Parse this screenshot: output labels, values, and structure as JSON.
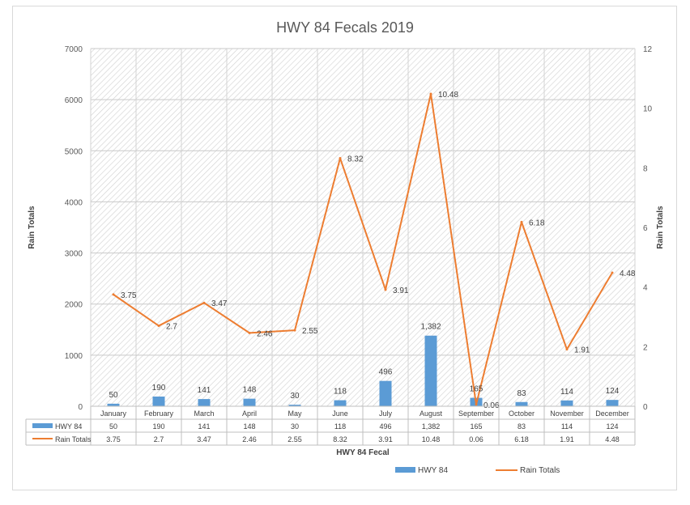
{
  "chart_data": {
    "type": "bar",
    "title": "HWY 84 Fecals 2019",
    "xlabel": "HWY 84 Fecal",
    "ylabel": "Rain Totals",
    "y2label": "Rain Totals",
    "ylim": [
      0,
      7000
    ],
    "yticks": [
      0,
      1000,
      2000,
      3000,
      4000,
      5000,
      6000,
      7000
    ],
    "y2lim": [
      0,
      12
    ],
    "y2ticks": [
      0,
      2,
      4,
      6,
      8,
      10,
      12
    ],
    "grid": true,
    "legend": "bottom",
    "categories": [
      "January",
      "February",
      "March",
      "April",
      "May",
      "June",
      "July",
      "August",
      "September",
      "October",
      "November",
      "December"
    ],
    "series": [
      {
        "name": "HWY 84",
        "type": "bar",
        "axis": "left",
        "color": "#5B9BD5",
        "values": [
          50,
          190,
          141,
          148,
          30,
          118,
          496,
          1382,
          165,
          83,
          114,
          124
        ],
        "labels": [
          "50",
          "190",
          "141",
          "148",
          "30",
          "118",
          "496",
          "1,382",
          "165",
          "83",
          "114",
          "124"
        ]
      },
      {
        "name": "Rain Totals",
        "type": "line",
        "axis": "right",
        "color": "#ED7D31",
        "values": [
          3.75,
          2.7,
          3.47,
          2.46,
          2.55,
          8.32,
          3.91,
          10.48,
          0.06,
          6.18,
          1.91,
          4.48
        ],
        "labels": [
          "3.75",
          "2.7",
          "3.47",
          "2.46",
          "2.55",
          "8.32",
          "3.91",
          "10.48",
          "0.06",
          "6.18",
          "1.91",
          "4.48"
        ]
      }
    ]
  }
}
